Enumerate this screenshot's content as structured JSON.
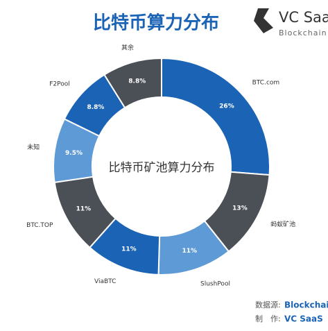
{
  "chart_data": {
    "type": "donut",
    "title": "比特币算力分布",
    "center_label": "比特币矿池算力分布",
    "categories": [
      "BTC.com",
      "蚂蚁矿池",
      "SlushPool",
      "ViaBTC",
      "BTC.TOP",
      "未知",
      "F2Pool",
      "其余"
    ],
    "values": [
      26,
      13,
      11,
      11,
      11,
      9.5,
      8.8,
      8.8
    ],
    "value_labels": [
      "26%",
      "13%",
      "11%",
      "11%",
      "11%",
      "9.5%",
      "8.8%",
      "8.8%"
    ],
    "colors": [
      "#1b63b5",
      "#4b4f56",
      "#5e9ad6",
      "#1b63b5",
      "#4b4f56",
      "#5e9ad6",
      "#1b63b5",
      "#4b4f56"
    ]
  },
  "logo": {
    "name": "VC SaaS",
    "tagline": "Blockchain"
  },
  "footer": {
    "source_label": "数据源:",
    "source": "Blockchain.in",
    "maker_label": "制　作:",
    "maker": "VC SaaS"
  }
}
